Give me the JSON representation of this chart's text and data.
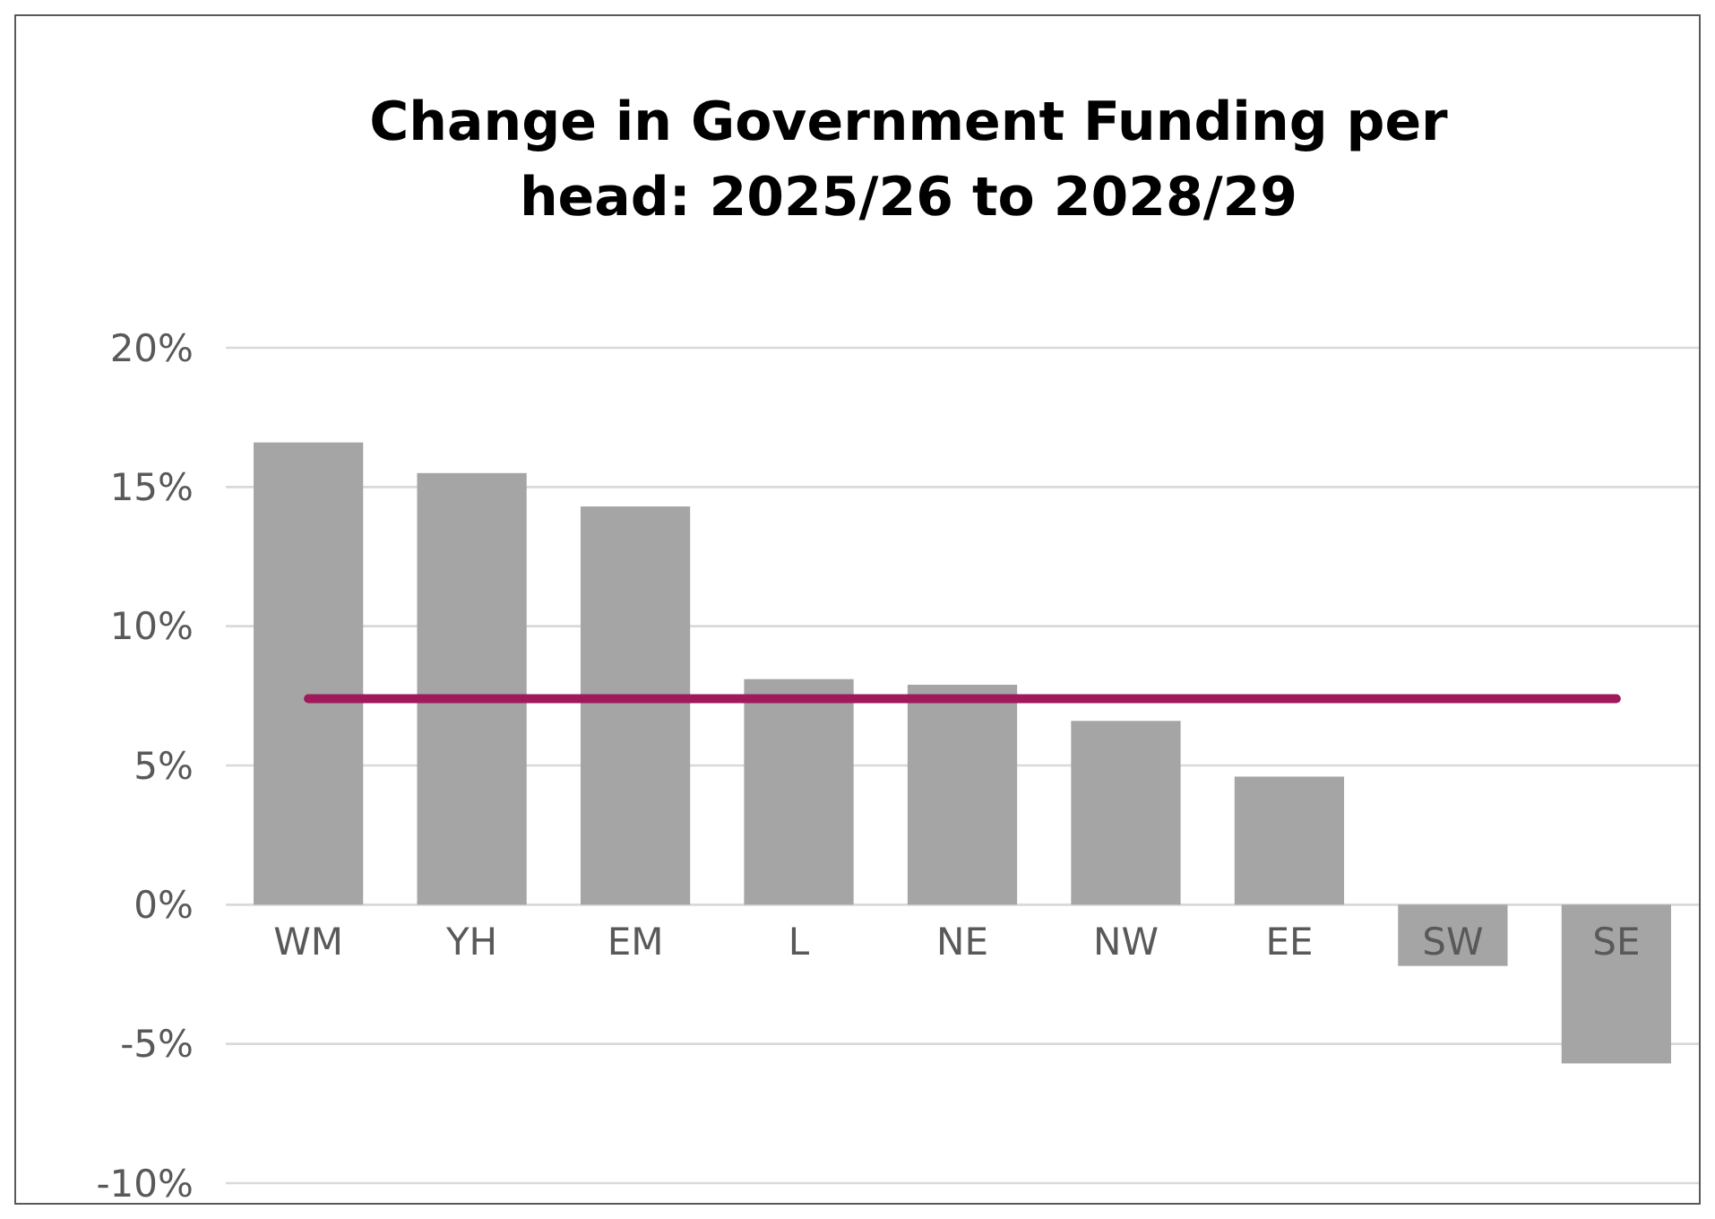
{
  "chart_data": {
    "type": "bar",
    "title": "Change in Government Funding per head: 2025/26 to 2028/29",
    "categories": [
      "WM",
      "YH",
      "EM",
      "L",
      "NE",
      "NW",
      "EE",
      "SW",
      "SE"
    ],
    "values": [
      16.6,
      15.5,
      14.3,
      8.1,
      7.9,
      6.6,
      4.6,
      -2.2,
      -5.7
    ],
    "color": "#a5a5a5",
    "ylim": [
      -10,
      20
    ],
    "yticks": [
      {
        "value": -10,
        "label": "-10%"
      },
      {
        "value": -5,
        "label": "-5%"
      },
      {
        "value": 0,
        "label": "0%"
      },
      {
        "value": 5,
        "label": "5%"
      },
      {
        "value": 10,
        "label": "10%"
      },
      {
        "value": 15,
        "label": "15%"
      },
      {
        "value": 20,
        "label": "20%"
      }
    ],
    "grid": "y",
    "ref_lines": [
      {
        "axis": "y",
        "value": 7.4,
        "color": "#a0195a"
      }
    ]
  }
}
